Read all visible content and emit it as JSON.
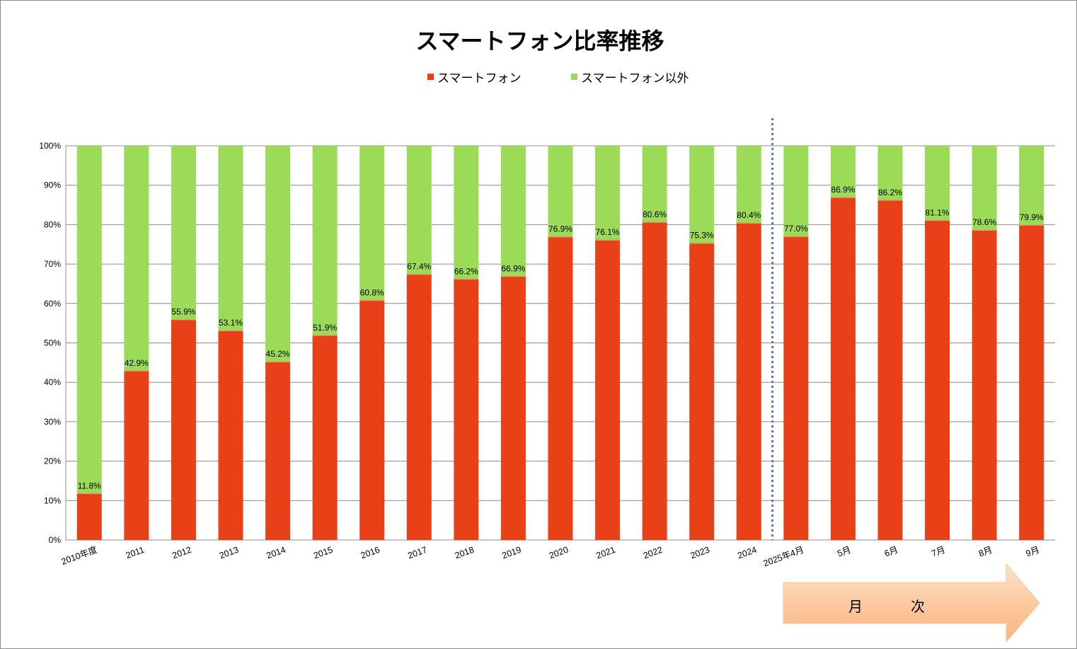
{
  "chart_data": {
    "type": "bar",
    "stacked": true,
    "title": "スマートフォン比率推移",
    "categories": [
      "2010年度",
      "2011",
      "2012",
      "2013",
      "2014",
      "2015",
      "2016",
      "2017",
      "2018",
      "2019",
      "2020",
      "2021",
      "2022",
      "2023",
      "2024",
      "2025年4月",
      "5月",
      "6月",
      "7月",
      "8月",
      "9月"
    ],
    "series": [
      {
        "name": "スマートフォン",
        "color": "#e84117",
        "values": [
          11.8,
          42.9,
          55.9,
          53.1,
          45.2,
          51.9,
          60.8,
          67.4,
          66.2,
          66.9,
          76.9,
          76.1,
          80.6,
          75.3,
          80.4,
          77.0,
          86.9,
          86.2,
          81.1,
          78.6,
          79.9
        ]
      },
      {
        "name": "スマートフォン以外",
        "color": "#9bdb57",
        "values": [
          88.2,
          57.1,
          44.1,
          46.9,
          54.8,
          48.1,
          39.2,
          32.6,
          33.8,
          33.1,
          23.1,
          23.9,
          19.4,
          24.7,
          19.6,
          23.0,
          13.1,
          13.8,
          18.9,
          21.4,
          20.1
        ]
      }
    ],
    "data_labels": [
      "11.8%",
      "42.9%",
      "55.9%",
      "53.1%",
      "45.2%",
      "51.9%",
      "60.8%",
      "67.4%",
      "66.2%",
      "66.9%",
      "76.9%",
      "76.1%",
      "80.6%",
      "75.3%",
      "80.4%",
      "77.0%",
      "86.9%",
      "86.2%",
      "81.1%",
      "78.6%",
      "79.9%"
    ],
    "yticks": [
      "0%",
      "10%",
      "20%",
      "30%",
      "40%",
      "50%",
      "60%",
      "70%",
      "80%",
      "90%",
      "100%"
    ],
    "ylim": [
      0,
      100
    ],
    "grid": true,
    "legend_position": "top",
    "annotation": {
      "text": "月　次",
      "type": "arrow",
      "color": "#fbd0a8"
    },
    "divider": {
      "style": "dotted",
      "color": "#4a7ebb",
      "between": [
        "2024",
        "2025年4月"
      ]
    }
  }
}
